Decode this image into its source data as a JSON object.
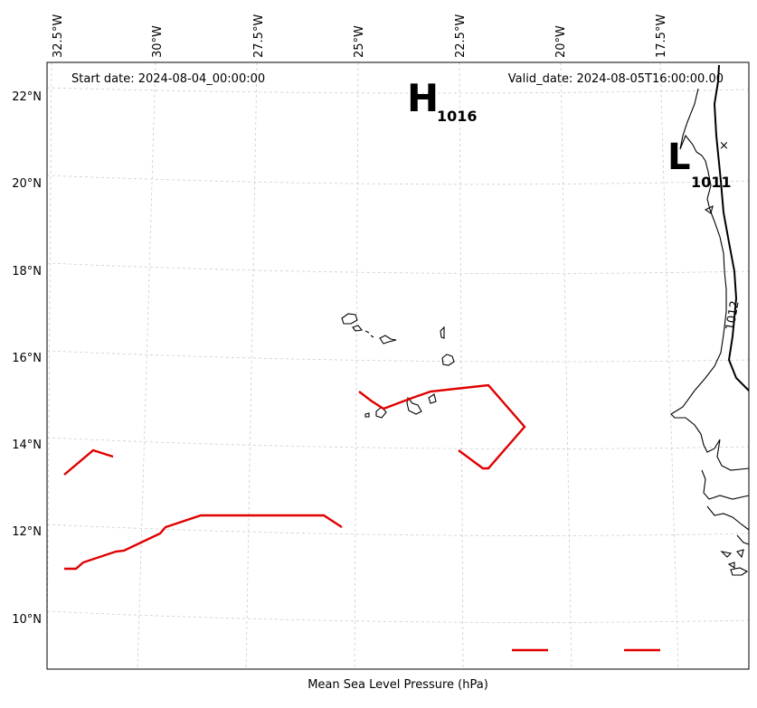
{
  "header": {
    "start_date": "Start date: 2024-08-04_00:00:00",
    "valid_date": "Valid_date: 2024-08-05T16:00:00.00"
  },
  "footer": {
    "caption": "Mean Sea Level Pressure (hPa)"
  },
  "lon_labels": [
    "32.5°W",
    "30°W",
    "27.5°W",
    "25°W",
    "22.5°W",
    "20°W",
    "17.5°W"
  ],
  "lat_labels": [
    "22°N",
    "20°N",
    "18°N",
    "16°N",
    "14°N",
    "12°N",
    "10°N"
  ],
  "pressure_centers": {
    "high": {
      "symbol": "H",
      "value": "1016"
    },
    "low": {
      "symbol": "L",
      "value": "1011",
      "marker": "×"
    }
  },
  "isobar_label": "1012",
  "colors": {
    "front": "#e00000",
    "grid": "#cccccc",
    "land": "#000000"
  }
}
